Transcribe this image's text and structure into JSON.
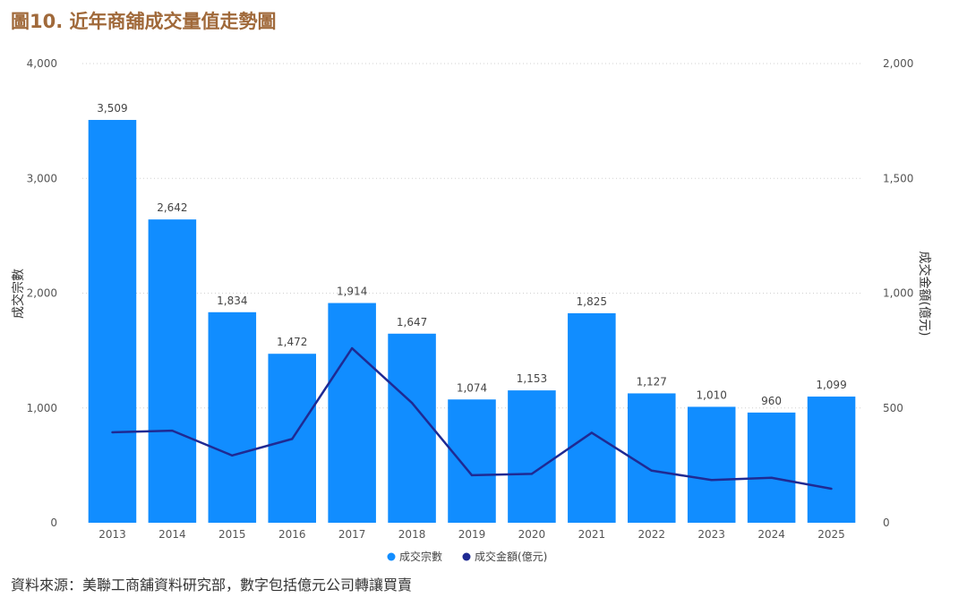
{
  "title": "圖10. 近年商舖成交量值走勢圖",
  "source": "資料來源：美聯工商舖資料研究部，數字包括億元公司轉讓買賣",
  "chart_data": {
    "type": "bar",
    "categories": [
      "2013",
      "2014",
      "2015",
      "2016",
      "2017",
      "2018",
      "2019",
      "2020",
      "2021",
      "2022",
      "2023",
      "2024",
      "2025"
    ],
    "series": [
      {
        "name": "成交宗數",
        "type": "bar",
        "axis": "left",
        "color": "#118dff",
        "values": [
          3509,
          2642,
          1834,
          1472,
          1914,
          1647,
          1074,
          1153,
          1825,
          1127,
          1010,
          960,
          1099
        ],
        "labels": [
          "3,509",
          "2,642",
          "1,834",
          "1,472",
          "1,914",
          "1,647",
          "1,074",
          "1,153",
          "1,825",
          "1,127",
          "1,010",
          "960",
          "1,099"
        ]
      },
      {
        "name": "成交金額(億元)",
        "type": "line",
        "axis": "right",
        "color": "#1f2a93",
        "values": [
          394,
          401,
          293,
          365,
          760,
          522,
          207,
          213,
          392,
          227,
          186,
          196,
          148
        ]
      }
    ],
    "ylabel_left": "成交宗數",
    "ylabel_right": "成交金額(億元)",
    "ylim_left": [
      0,
      4000
    ],
    "ylim_right": [
      0,
      2000
    ],
    "yticks_left": [
      0,
      1000,
      2000,
      3000,
      4000
    ],
    "yticks_left_labels": [
      "0",
      "1,000",
      "2,000",
      "3,000",
      "4,000"
    ],
    "yticks_right": [
      0,
      500,
      1000,
      1500,
      2000
    ],
    "yticks_right_labels": [
      "0",
      "500",
      "1,000",
      "1,500",
      "2,000"
    ],
    "grid": "horizontal-dotted",
    "legend": "bottom-center"
  }
}
